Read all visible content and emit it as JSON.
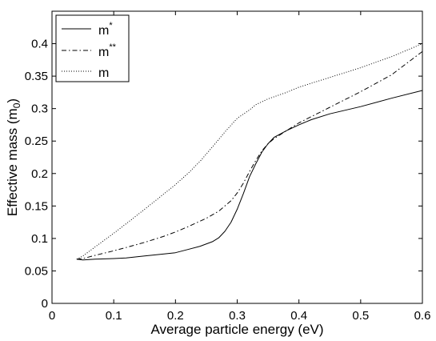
{
  "chart_data": {
    "type": "line",
    "xlabel": "Average particle energy (eV)",
    "ylabel": "Effective mass (m",
    "ylabel_sub": "0",
    "ylabel_close": ")",
    "xlim": [
      0,
      0.6
    ],
    "ylim": [
      0,
      0.45
    ],
    "xticks": [
      0,
      0.1,
      0.2,
      0.3,
      0.4,
      0.5,
      0.6
    ],
    "xtick_labels": [
      "0",
      "0.1",
      "0.2",
      "0.3",
      "0.4",
      "0.5",
      "0.6"
    ],
    "yticks": [
      0,
      0.05,
      0.1,
      0.15,
      0.2,
      0.25,
      0.3,
      0.35,
      0.4
    ],
    "ytick_labels": [
      "0",
      "0.05",
      "0.1",
      "0.15",
      "0.2",
      "0.25",
      "0.3",
      "0.35",
      "0.4"
    ],
    "grid": false,
    "legend_position": "top-left",
    "series": [
      {
        "name": "m",
        "name_sup": "*",
        "style": "solid",
        "x": [
          0.04,
          0.05,
          0.07,
          0.1,
          0.12,
          0.15,
          0.18,
          0.2,
          0.22,
          0.24,
          0.26,
          0.27,
          0.28,
          0.29,
          0.3,
          0.31,
          0.32,
          0.33,
          0.34,
          0.35,
          0.36,
          0.38,
          0.4,
          0.42,
          0.45,
          0.5,
          0.55,
          0.6
        ],
        "y": [
          0.068,
          0.067,
          0.068,
          0.069,
          0.07,
          0.073,
          0.076,
          0.078,
          0.083,
          0.088,
          0.095,
          0.101,
          0.111,
          0.125,
          0.145,
          0.169,
          0.195,
          0.215,
          0.233,
          0.246,
          0.256,
          0.266,
          0.275,
          0.283,
          0.292,
          0.303,
          0.316,
          0.328
        ]
      },
      {
        "name": "m",
        "name_sup": "**",
        "style": "dashdot",
        "x": [
          0.04,
          0.05,
          0.07,
          0.1,
          0.12,
          0.15,
          0.18,
          0.2,
          0.22,
          0.25,
          0.27,
          0.29,
          0.3,
          0.31,
          0.32,
          0.33,
          0.34,
          0.35,
          0.36,
          0.38,
          0.4,
          0.45,
          0.5,
          0.55,
          0.6
        ],
        "y": [
          0.068,
          0.069,
          0.074,
          0.081,
          0.086,
          0.094,
          0.103,
          0.11,
          0.118,
          0.131,
          0.142,
          0.158,
          0.17,
          0.185,
          0.203,
          0.22,
          0.235,
          0.246,
          0.254,
          0.266,
          0.278,
          0.302,
          0.326,
          0.352,
          0.388
        ]
      },
      {
        "name": "m",
        "name_sup": "",
        "style": "dotted",
        "x": [
          0.04,
          0.05,
          0.07,
          0.1,
          0.13,
          0.15,
          0.17,
          0.2,
          0.22,
          0.24,
          0.26,
          0.28,
          0.3,
          0.32,
          0.33,
          0.35,
          0.38,
          0.4,
          0.45,
          0.5,
          0.55,
          0.6
        ],
        "y": [
          0.068,
          0.073,
          0.087,
          0.108,
          0.13,
          0.145,
          0.16,
          0.183,
          0.2,
          0.219,
          0.241,
          0.264,
          0.285,
          0.298,
          0.306,
          0.315,
          0.325,
          0.333,
          0.348,
          0.363,
          0.38,
          0.4
        ]
      }
    ]
  }
}
